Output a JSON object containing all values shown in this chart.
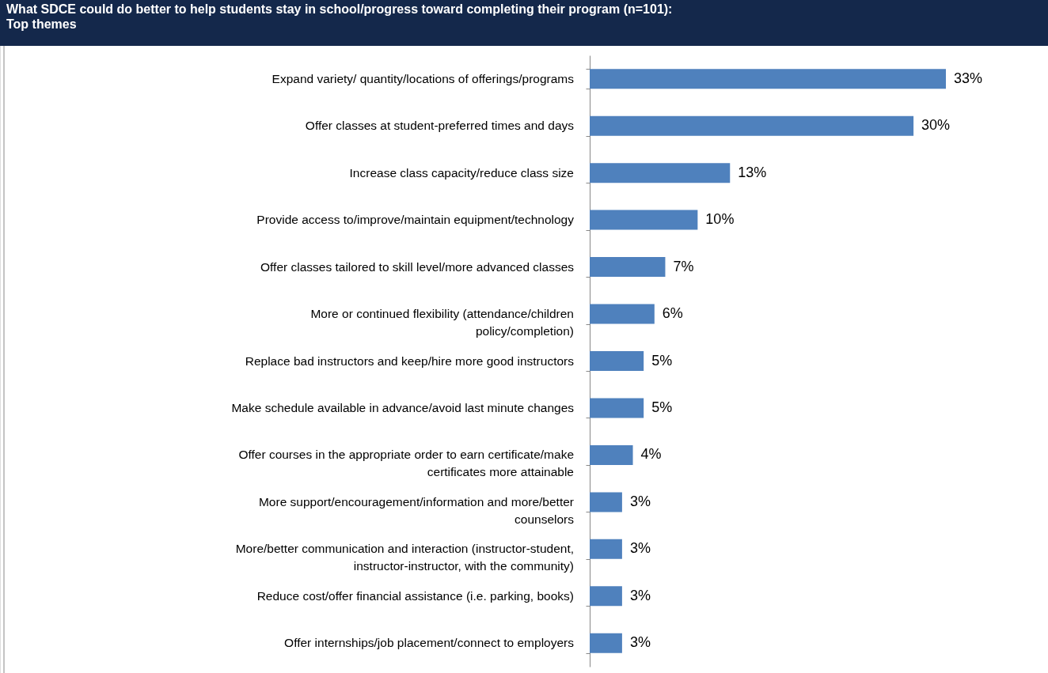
{
  "chart_data": {
    "type": "bar",
    "orientation": "horizontal",
    "title": "What SDCE could do better to help students stay in school/progress toward completing their program (n=101): Top themes",
    "categories": [
      "Expand variety/ quantity/locations of offerings/programs",
      "Offer classes at student-preferred times and days",
      "Increase class capacity/reduce class size",
      "Provide access to/improve/maintain equipment/technology",
      "Offer classes tailored to skill level/more advanced classes",
      "More or continued flexibility (attendance/children policy/completion)",
      "Replace bad instructors and keep/hire more good instructors",
      "Make schedule available in advance/avoid last minute changes",
      "Offer courses in the appropriate order to earn certificate/make certificates more attainable",
      "More support/encouragement/information and more/better counselors",
      "More/better communication and interaction (instructor-student, instructor-instructor, with the community)",
      "Reduce cost/offer financial assistance (i.e. parking, books)",
      "Offer internships/job placement/connect to employers"
    ],
    "values": [
      33,
      30,
      13,
      10,
      7,
      6,
      5,
      5,
      4,
      3,
      3,
      3,
      3
    ],
    "value_labels": [
      "33%",
      "30%",
      "13%",
      "10%",
      "7%",
      "6%",
      "5%",
      "5%",
      "4%",
      "3%",
      "3%",
      "3%",
      "3%"
    ],
    "color": "#4f81bd"
  }
}
